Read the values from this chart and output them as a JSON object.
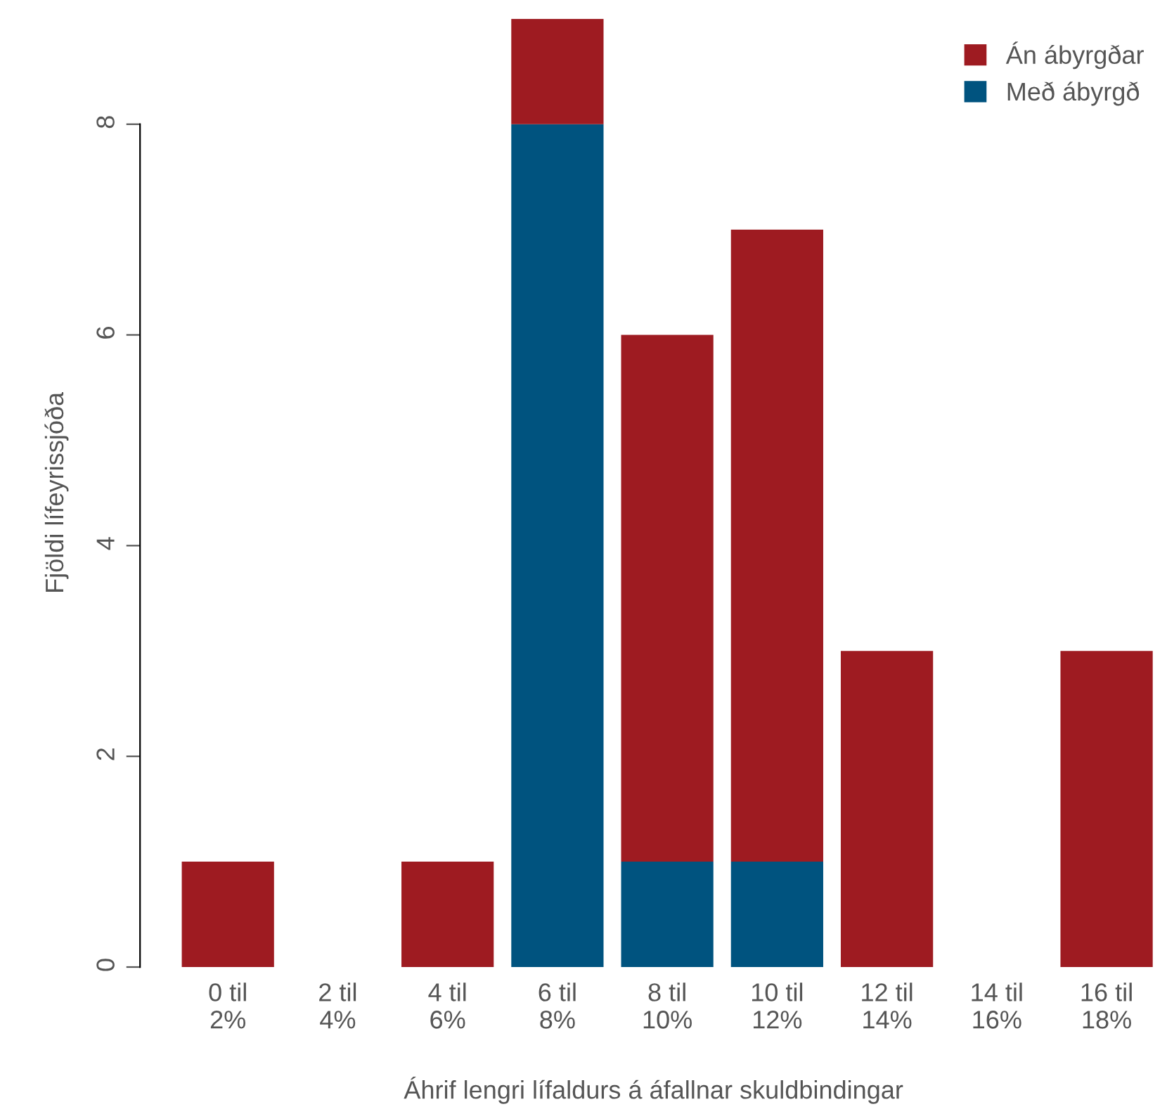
{
  "chart_data": {
    "type": "bar",
    "stacked": true,
    "xlabel": "Áhrif lengri lífaldurs á áfallnar skuldbindingar",
    "ylabel": "Fjöldi lífeyrissjóða",
    "categories": [
      "0 til\n2%",
      "2 til\n4%",
      "4 til\n6%",
      "6 til\n8%",
      "8 til\n10%",
      "10 til\n12%",
      "12 til\n14%",
      "14 til\n16%",
      "16 til\n18%"
    ],
    "series": [
      {
        "name": "Með ábyrgð",
        "color": "#00537f",
        "values": [
          0,
          0,
          0,
          8,
          1,
          1,
          0,
          0,
          0
        ]
      },
      {
        "name": "Án ábyrgðar",
        "color": "#9e1b21",
        "values": [
          1,
          0,
          1,
          1,
          5,
          6,
          3,
          0,
          3
        ]
      }
    ],
    "ylim": [
      0,
      9
    ],
    "yticks": [
      0,
      2,
      4,
      6,
      8
    ],
    "grid": false,
    "legend": "top right"
  }
}
